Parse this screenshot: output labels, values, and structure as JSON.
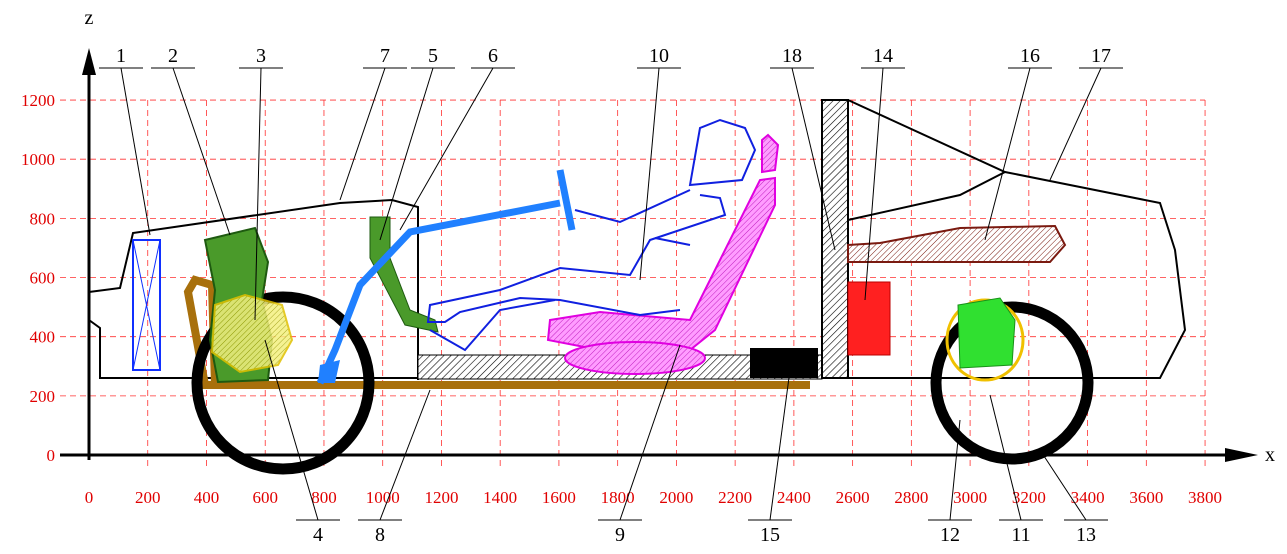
{
  "axes": {
    "x": {
      "label": "x",
      "ticks": [
        0,
        200,
        400,
        600,
        800,
        1000,
        1200,
        1400,
        1600,
        1800,
        2000,
        2200,
        2400,
        2600,
        2800,
        3000,
        3200,
        3400,
        3600,
        3800
      ]
    },
    "z": {
      "label": "z",
      "ticks": [
        0,
        200,
        400,
        600,
        800,
        1000,
        1200
      ]
    }
  },
  "callouts": [
    "1",
    "2",
    "3",
    "7",
    "5",
    "6",
    "10",
    "18",
    "14",
    "16",
    "17",
    "4",
    "8",
    "9",
    "15",
    "12",
    "11",
    "13"
  ]
}
